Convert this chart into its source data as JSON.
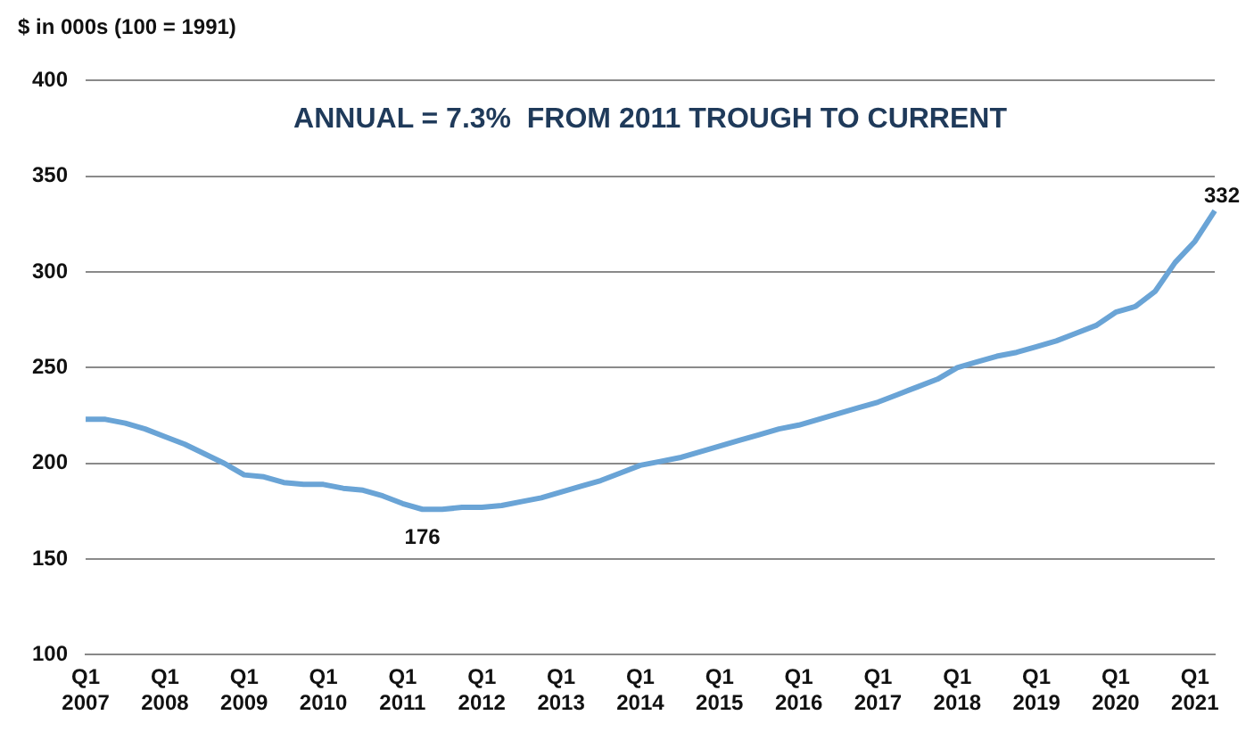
{
  "chart_data": {
    "type": "line",
    "ylabel": "$ in 000s (100 = 1991)",
    "annotations": [
      "ANNUAL = 7.3%  FROM 2011 TROUGH TO CURRENT"
    ],
    "categories": [
      "Q1 2007",
      null,
      null,
      null,
      "Q1 2008",
      null,
      null,
      null,
      "Q1 2009",
      null,
      null,
      null,
      "Q1 2010",
      null,
      null,
      null,
      "Q1 2011",
      null,
      null,
      null,
      "Q1 2012",
      null,
      null,
      null,
      "Q1 2013",
      null,
      null,
      null,
      "Q1 2014",
      null,
      null,
      null,
      "Q1 2015",
      null,
      null,
      null,
      "Q1 2016",
      null,
      null,
      null,
      "Q1 2017",
      null,
      null,
      null,
      "Q1 2018",
      null,
      null,
      null,
      "Q1 2019",
      null,
      null,
      null,
      "Q1 2020",
      null,
      null,
      null,
      "Q1 2021",
      null
    ],
    "series": [
      {
        "color": "#6aa4d6",
        "values": [
          223,
          223,
          221,
          218,
          214,
          210,
          205,
          200,
          194,
          193,
          190,
          189,
          189,
          187,
          186,
          183,
          179,
          176,
          176,
          177,
          177,
          178,
          180,
          182,
          185,
          188,
          191,
          195,
          199,
          201,
          203,
          206,
          209,
          212,
          215,
          218,
          220,
          223,
          226,
          229,
          232,
          236,
          240,
          244,
          250,
          253,
          256,
          258,
          261,
          264,
          268,
          272,
          279,
          282,
          290,
          305,
          316,
          332
        ],
        "value_labels": [
          null,
          null,
          null,
          null,
          null,
          null,
          null,
          null,
          null,
          null,
          null,
          null,
          null,
          null,
          null,
          null,
          null,
          "176",
          null,
          null,
          null,
          null,
          null,
          null,
          null,
          null,
          null,
          null,
          null,
          null,
          null,
          null,
          null,
          null,
          null,
          null,
          null,
          null,
          null,
          null,
          null,
          null,
          null,
          null,
          null,
          null,
          null,
          null,
          null,
          null,
          null,
          null,
          null,
          null,
          null,
          null,
          null,
          "332"
        ]
      }
    ],
    "ylim": [
      100,
      400
    ],
    "yticks": [
      100,
      150,
      200,
      250,
      300,
      350,
      400
    ],
    "grid": "y",
    "legend": false,
    "marker": "none",
    "line_style": "solid"
  }
}
